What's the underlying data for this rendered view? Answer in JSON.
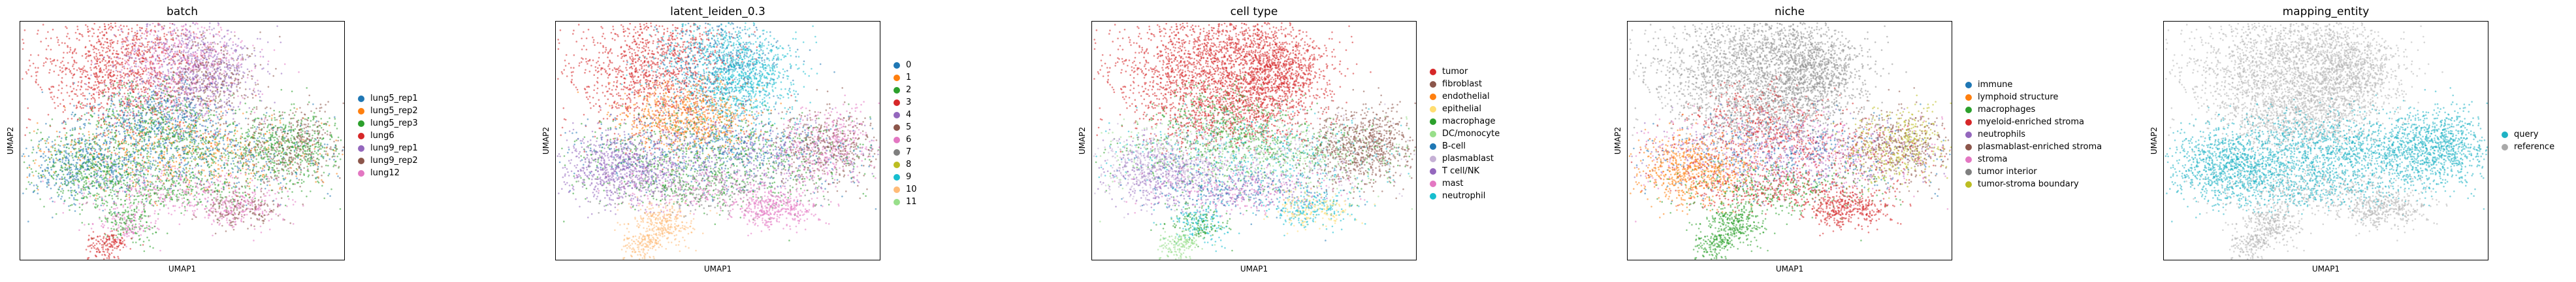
{
  "chart_data": [
    {
      "type": "scatter",
      "title": "batch",
      "xlabel": "UMAP1",
      "ylabel": "UMAP2",
      "legend_position": "right",
      "series": [
        {
          "name": "lung5_rep1",
          "color": "#1f77b4"
        },
        {
          "name": "lung5_rep2",
          "color": "#ff7f0e"
        },
        {
          "name": "lung5_rep3",
          "color": "#2ca02c"
        },
        {
          "name": "lung6",
          "color": "#d62728"
        },
        {
          "name": "lung9_rep1",
          "color": "#9467bd"
        },
        {
          "name": "lung9_rep2",
          "color": "#8c564b"
        },
        {
          "name": "lung12",
          "color": "#e377c2"
        }
      ]
    },
    {
      "type": "scatter",
      "title": "latent_leiden_0.3",
      "xlabel": "UMAP1",
      "ylabel": "UMAP2",
      "legend_position": "right",
      "series": [
        {
          "name": "0",
          "color": "#1f77b4"
        },
        {
          "name": "1",
          "color": "#ff7f0e"
        },
        {
          "name": "2",
          "color": "#2ca02c"
        },
        {
          "name": "3",
          "color": "#d62728"
        },
        {
          "name": "4",
          "color": "#9467bd"
        },
        {
          "name": "5",
          "color": "#8c564b"
        },
        {
          "name": "6",
          "color": "#e377c2"
        },
        {
          "name": "7",
          "color": "#7f7f7f"
        },
        {
          "name": "8",
          "color": "#bcbd22"
        },
        {
          "name": "9",
          "color": "#17becf"
        },
        {
          "name": "10",
          "color": "#ffbb78"
        },
        {
          "name": "11",
          "color": "#98df8a"
        }
      ]
    },
    {
      "type": "scatter",
      "title": "cell type",
      "xlabel": "UMAP1",
      "ylabel": "UMAP2",
      "legend_position": "right",
      "series": [
        {
          "name": "tumor",
          "color": "#d62728"
        },
        {
          "name": "fibroblast",
          "color": "#8c564b"
        },
        {
          "name": "endothelial",
          "color": "#ff7f0e"
        },
        {
          "name": "epithelial",
          "color": "#ffdd71"
        },
        {
          "name": "macrophage",
          "color": "#2ca02c"
        },
        {
          "name": "DC/monocyte",
          "color": "#98df8a"
        },
        {
          "name": "B-cell",
          "color": "#1f77b4"
        },
        {
          "name": "plasmablast",
          "color": "#c5b0d5"
        },
        {
          "name": "T cell/NK",
          "color": "#9467bd"
        },
        {
          "name": "mast",
          "color": "#e377c2"
        },
        {
          "name": "neutrophil",
          "color": "#17becf"
        }
      ]
    },
    {
      "type": "scatter",
      "title": "niche",
      "xlabel": "UMAP1",
      "ylabel": "UMAP2",
      "legend_position": "right",
      "series": [
        {
          "name": "immune",
          "color": "#1f77b4"
        },
        {
          "name": "lymphoid structure",
          "color": "#ff7f0e"
        },
        {
          "name": "macrophages",
          "color": "#2ca02c"
        },
        {
          "name": "myeloid-enriched stroma",
          "color": "#d62728"
        },
        {
          "name": "neutrophils",
          "color": "#9467bd"
        },
        {
          "name": "plasmablast-enriched stroma",
          "color": "#8c564b"
        },
        {
          "name": "stroma",
          "color": "#e377c2"
        },
        {
          "name": "tumor interior",
          "color": "#7f7f7f"
        },
        {
          "name": "tumor-stroma boundary",
          "color": "#bcbd22"
        }
      ]
    },
    {
      "type": "scatter",
      "title": "mapping_entity",
      "xlabel": "UMAP1",
      "ylabel": "UMAP2",
      "legend_position": "right",
      "series": [
        {
          "name": "query",
          "color": "#1fb2c4"
        },
        {
          "name": "reference",
          "color": "#a9a9a9"
        }
      ]
    }
  ]
}
